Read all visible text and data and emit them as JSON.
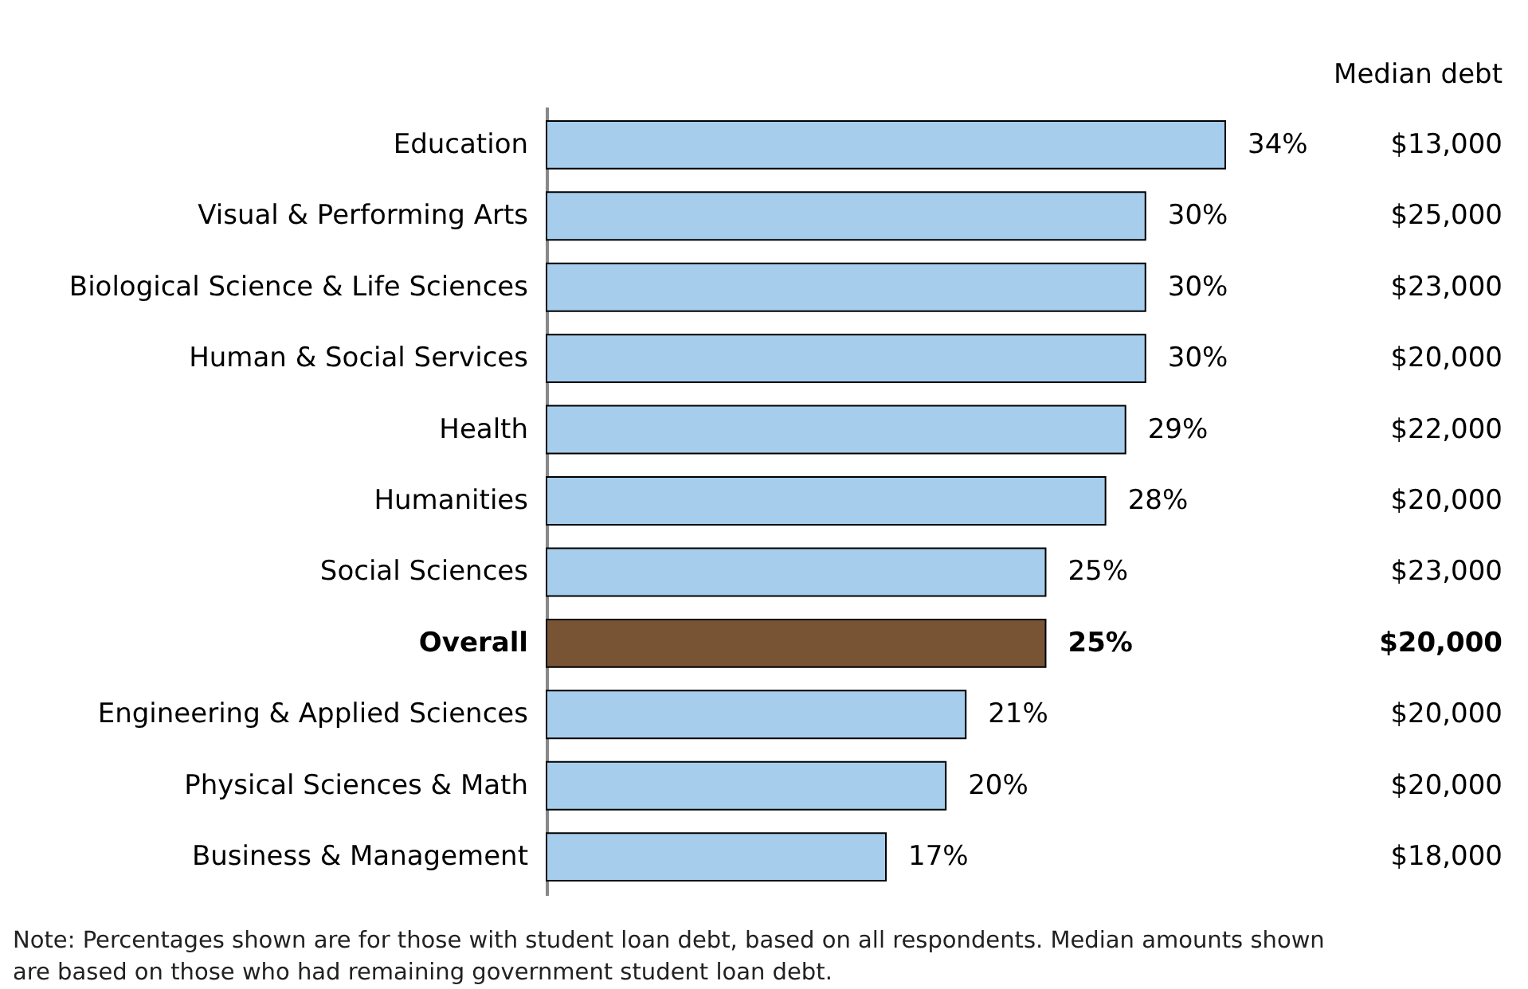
{
  "chart_data": {
    "type": "bar",
    "orientation": "horizontal",
    "data_labels": true,
    "categories": [
      "Education",
      "Visual & Performing Arts",
      "Biological Science & Life Sciences",
      "Human & Social Services",
      "Health",
      "Humanities",
      "Social Sciences",
      "Overall",
      "Engineering & Applied Sciences",
      "Physical Sciences & Math",
      "Business & Management"
    ],
    "values": [
      34,
      30,
      30,
      30,
      29,
      28,
      25,
      25,
      21,
      20,
      17
    ],
    "value_labels": [
      "34%",
      "30%",
      "30%",
      "30%",
      "29%",
      "28%",
      "25%",
      "25%",
      "21%",
      "20%",
      "17%"
    ],
    "colors": [
      "#a6cdec",
      "#a6cdec",
      "#a6cdec",
      "#a6cdec",
      "#a6cdec",
      "#a6cdec",
      "#a6cdec",
      "#785434",
      "#a6cdec",
      "#a6cdec",
      "#a6cdec"
    ],
    "annotations": [
      "Median debt",
      "$13,000",
      "$25,000",
      "$23,000",
      "$20,000",
      "$22,000",
      "$20,000",
      "$23,000",
      "$20,000",
      "$20,000",
      "$20,000",
      "$18,000",
      "Note:  Percentages shown are for those with student loan debt, based on all respondents. Median amounts shown are based on those who had remaining government student loan debt."
    ],
    "grid": false
  }
}
